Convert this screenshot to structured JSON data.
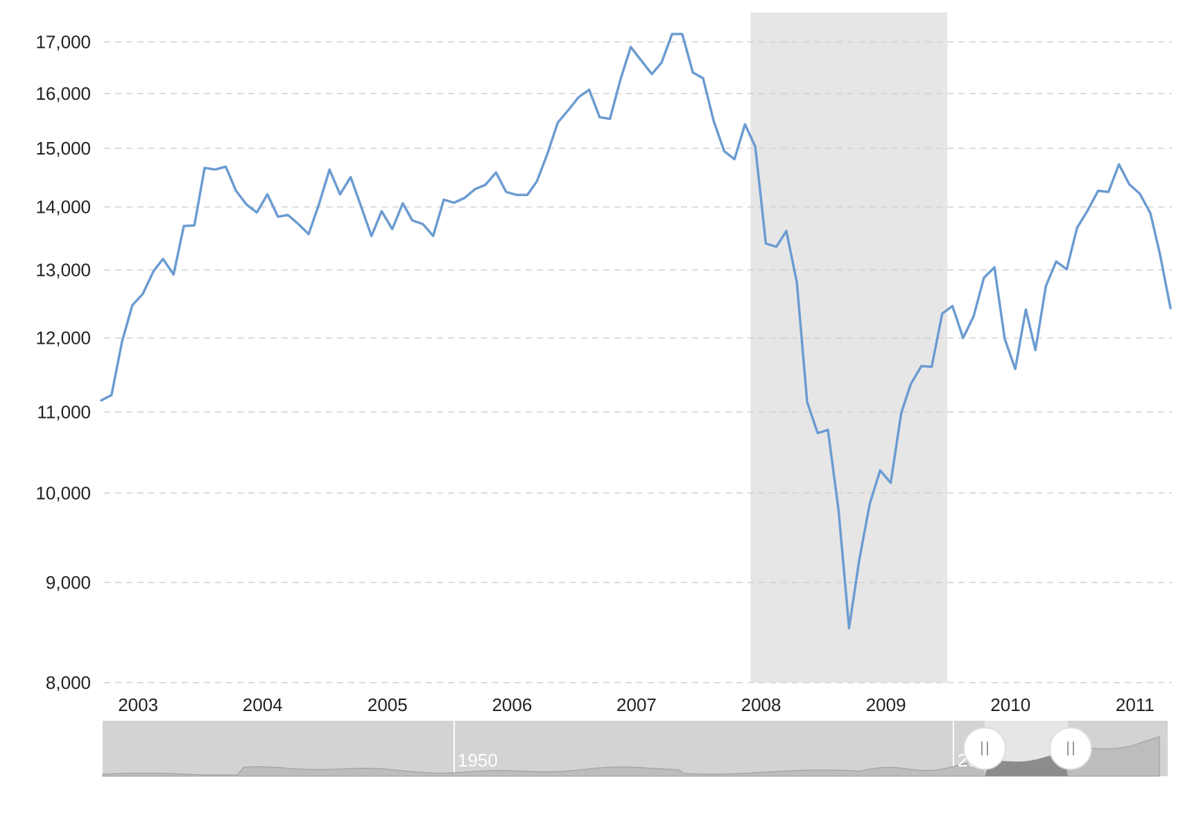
{
  "chart_data": {
    "type": "line",
    "title": "",
    "xlabel": "",
    "ylabel": "",
    "y_scale": "log",
    "ylim": [
      8000,
      17600
    ],
    "xlim": [
      "2002-09-15",
      "2011-04-15"
    ],
    "yticks": [
      8000,
      9000,
      10000,
      11000,
      12000,
      13000,
      14000,
      15000,
      16000,
      17000
    ],
    "ytick_labels": [
      "8,000",
      "9,000",
      "10,000",
      "11,000",
      "12,000",
      "13,000",
      "14,000",
      "15,000",
      "16,000",
      "17,000"
    ],
    "xticks": [
      "2003",
      "2004",
      "2005",
      "2006",
      "2007",
      "2008",
      "2009",
      "2010",
      "2011"
    ],
    "grid": true,
    "legend": "none",
    "series_color": "#6b9bd1",
    "recession_band": {
      "start": "2007-12-01",
      "end": "2009-06-30",
      "color": "#e6e6e6"
    },
    "series": [
      {
        "dates": [
          "2002-09-15",
          "2002-10-15",
          "2002-11-15",
          "2002-12-15",
          "2003-01-15",
          "2003-02-15",
          "2003-03-15",
          "2003-04-15",
          "2003-05-15",
          "2003-06-15",
          "2003-07-15",
          "2003-08-15",
          "2003-09-15",
          "2003-10-15",
          "2003-11-15",
          "2003-12-15",
          "2004-01-15",
          "2004-02-15",
          "2004-03-15",
          "2004-04-15",
          "2004-05-15",
          "2004-06-15",
          "2004-07-15",
          "2004-08-15",
          "2004-09-15",
          "2004-10-15",
          "2004-11-15",
          "2004-12-15",
          "2005-01-15",
          "2005-02-15",
          "2005-03-15",
          "2005-04-15",
          "2005-05-15",
          "2005-06-15",
          "2005-07-15",
          "2005-08-15",
          "2005-09-15",
          "2005-10-15",
          "2005-11-15",
          "2005-12-15",
          "2006-01-15",
          "2006-02-15",
          "2006-03-15",
          "2006-04-15",
          "2006-05-15",
          "2006-06-15",
          "2006-07-15",
          "2006-08-15",
          "2006-09-15",
          "2006-10-15",
          "2006-11-15",
          "2006-12-15",
          "2007-01-15",
          "2007-02-15",
          "2007-03-15",
          "2007-04-15",
          "2007-05-15",
          "2007-06-15",
          "2007-07-15",
          "2007-08-15",
          "2007-09-15",
          "2007-10-15",
          "2007-11-15",
          "2007-12-15",
          "2008-01-15",
          "2008-02-15",
          "2008-03-15",
          "2008-04-15",
          "2008-05-15",
          "2008-06-15",
          "2008-07-15",
          "2008-08-15",
          "2008-09-15",
          "2008-10-15",
          "2008-11-15",
          "2008-12-15",
          "2009-01-15",
          "2009-02-15",
          "2009-03-15",
          "2009-04-15",
          "2009-05-15",
          "2009-06-15",
          "2009-07-15",
          "2009-08-15",
          "2009-09-15",
          "2009-10-15",
          "2009-11-15",
          "2009-12-15",
          "2010-01-15",
          "2010-02-15",
          "2010-03-15",
          "2010-04-15",
          "2010-05-15",
          "2010-06-15",
          "2010-07-15",
          "2010-08-15",
          "2010-09-15",
          "2010-10-15",
          "2010-11-15",
          "2010-12-15",
          "2011-01-15",
          "2011-02-15",
          "2011-03-15",
          "2011-04-15"
        ],
        "values": [
          11150,
          11220,
          11950,
          12470,
          12640,
          12980,
          13170,
          12930,
          13690,
          13700,
          14660,
          14630,
          14680,
          14270,
          14040,
          13910,
          14210,
          13840,
          13870,
          13720,
          13560,
          14060,
          14630,
          14210,
          14500,
          14020,
          13530,
          13930,
          13640,
          14060,
          13780,
          13720,
          13530,
          14120,
          14070,
          14150,
          14300,
          14370,
          14580,
          14250,
          14200,
          14200,
          14430,
          14910,
          15460,
          15690,
          15930,
          16070,
          15560,
          15530,
          16270,
          16900,
          16630,
          16370,
          16590,
          17160,
          17160,
          16400,
          16290,
          15490,
          14950,
          14810,
          15430,
          15030,
          13410,
          13360,
          13610,
          12810,
          11130,
          10730,
          10770,
          9800,
          8530,
          9250,
          9880,
          10270,
          10120,
          10990,
          11370,
          11610,
          11600,
          12350,
          12460,
          12000,
          12310,
          12880,
          13040,
          11990,
          11570,
          12410,
          11830,
          12760,
          13130,
          13010,
          13660,
          13940,
          14270,
          14250,
          14720,
          14380,
          14220,
          13900,
          13250,
          12430
        ]
      }
    ]
  },
  "navigator": {
    "labels": [
      "1950",
      "2000"
    ]
  }
}
